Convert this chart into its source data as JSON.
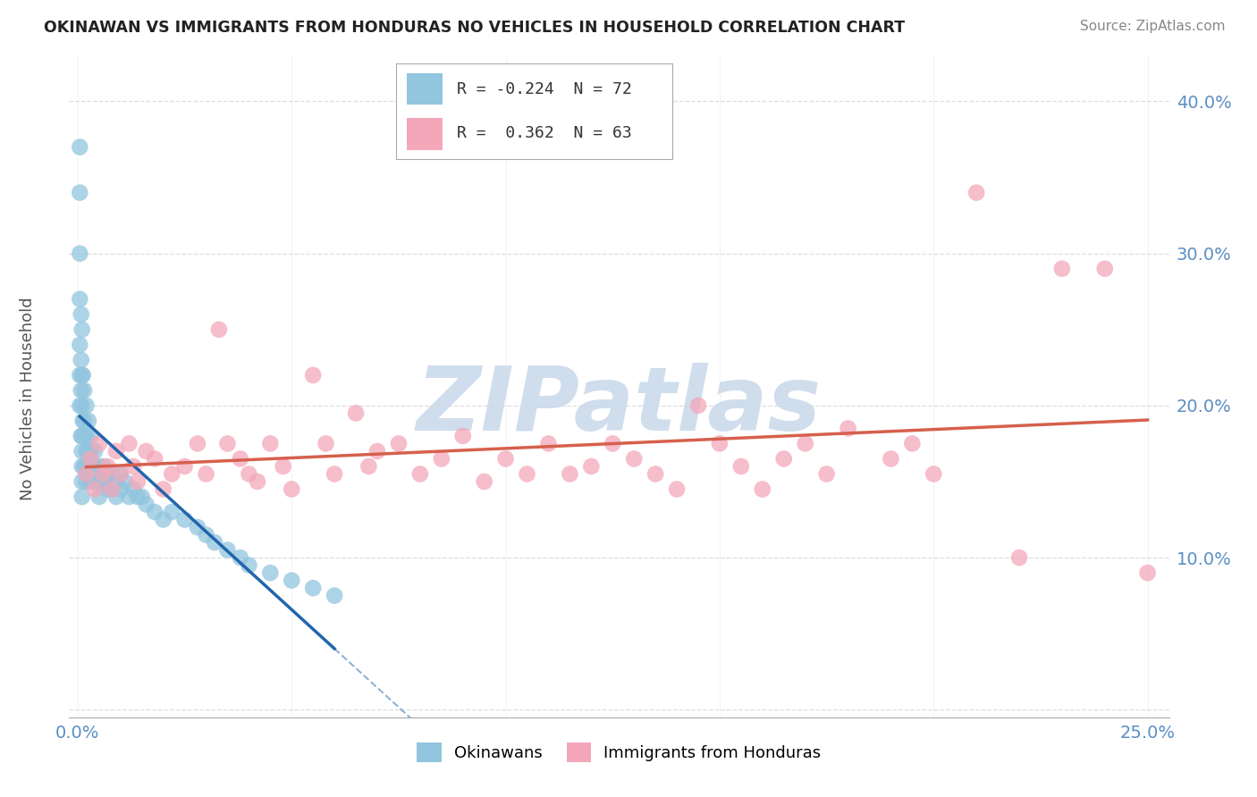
{
  "title": "OKINAWAN VS IMMIGRANTS FROM HONDURAS NO VEHICLES IN HOUSEHOLD CORRELATION CHART",
  "source": "Source: ZipAtlas.com",
  "ylabel": "No Vehicles in Household",
  "xlim": [
    -0.002,
    0.255
  ],
  "ylim": [
    -0.005,
    0.43
  ],
  "xticks": [
    0.0,
    0.05,
    0.1,
    0.15,
    0.2,
    0.25
  ],
  "yticks": [
    0.0,
    0.1,
    0.2,
    0.3,
    0.4
  ],
  "series1_name": "Okinawans",
  "series1_R": -0.224,
  "series1_N": 72,
  "series1_color": "#92c5de",
  "series1_trend_color": "#2166ac",
  "series2_name": "Immigrants from Honduras",
  "series2_R": 0.362,
  "series2_N": 63,
  "series2_color": "#f4a7b9",
  "series2_trend_color": "#d6604d",
  "watermark_text": "ZIPatlas",
  "watermark_color": "#c8d8ea",
  "background_color": "#ffffff",
  "grid_color": "#dddddd",
  "tick_color": "#5b8ec4",
  "okinawan_x": [
    0.0005,
    0.0005,
    0.0005,
    0.0005,
    0.0005,
    0.0005,
    0.0005,
    0.0008,
    0.0008,
    0.0008,
    0.0008,
    0.001,
    0.001,
    0.001,
    0.001,
    0.001,
    0.001,
    0.001,
    0.001,
    0.0012,
    0.0012,
    0.0015,
    0.0015,
    0.0015,
    0.0015,
    0.002,
    0.002,
    0.002,
    0.002,
    0.002,
    0.0025,
    0.0025,
    0.003,
    0.003,
    0.003,
    0.003,
    0.004,
    0.004,
    0.004,
    0.005,
    0.005,
    0.005,
    0.006,
    0.006,
    0.007,
    0.007,
    0.008,
    0.008,
    0.009,
    0.009,
    0.01,
    0.01,
    0.011,
    0.012,
    0.013,
    0.014,
    0.015,
    0.016,
    0.018,
    0.02,
    0.022,
    0.025,
    0.028,
    0.03,
    0.032,
    0.035,
    0.038,
    0.04,
    0.045,
    0.05,
    0.055,
    0.06
  ],
  "okinawan_y": [
    0.37,
    0.34,
    0.3,
    0.27,
    0.24,
    0.22,
    0.2,
    0.26,
    0.23,
    0.21,
    0.18,
    0.25,
    0.22,
    0.2,
    0.18,
    0.17,
    0.16,
    0.15,
    0.14,
    0.22,
    0.19,
    0.21,
    0.19,
    0.18,
    0.16,
    0.2,
    0.18,
    0.17,
    0.16,
    0.15,
    0.19,
    0.17,
    0.18,
    0.17,
    0.16,
    0.15,
    0.17,
    0.16,
    0.15,
    0.16,
    0.15,
    0.14,
    0.16,
    0.15,
    0.155,
    0.145,
    0.155,
    0.145,
    0.15,
    0.14,
    0.155,
    0.145,
    0.15,
    0.14,
    0.145,
    0.14,
    0.14,
    0.135,
    0.13,
    0.125,
    0.13,
    0.125,
    0.12,
    0.115,
    0.11,
    0.105,
    0.1,
    0.095,
    0.09,
    0.085,
    0.08,
    0.075
  ],
  "honduras_x": [
    0.002,
    0.003,
    0.004,
    0.005,
    0.006,
    0.007,
    0.008,
    0.009,
    0.01,
    0.012,
    0.013,
    0.014,
    0.016,
    0.018,
    0.02,
    0.022,
    0.025,
    0.028,
    0.03,
    0.033,
    0.035,
    0.038,
    0.04,
    0.042,
    0.045,
    0.048,
    0.05,
    0.055,
    0.058,
    0.06,
    0.065,
    0.068,
    0.07,
    0.075,
    0.08,
    0.085,
    0.09,
    0.095,
    0.1,
    0.105,
    0.11,
    0.115,
    0.12,
    0.125,
    0.13,
    0.135,
    0.14,
    0.145,
    0.15,
    0.155,
    0.16,
    0.165,
    0.17,
    0.175,
    0.18,
    0.19,
    0.195,
    0.2,
    0.21,
    0.22,
    0.23,
    0.24,
    0.25
  ],
  "honduras_y": [
    0.155,
    0.165,
    0.145,
    0.175,
    0.155,
    0.16,
    0.145,
    0.17,
    0.155,
    0.175,
    0.16,
    0.15,
    0.17,
    0.165,
    0.145,
    0.155,
    0.16,
    0.175,
    0.155,
    0.25,
    0.175,
    0.165,
    0.155,
    0.15,
    0.175,
    0.16,
    0.145,
    0.22,
    0.175,
    0.155,
    0.195,
    0.16,
    0.17,
    0.175,
    0.155,
    0.165,
    0.18,
    0.15,
    0.165,
    0.155,
    0.175,
    0.155,
    0.16,
    0.175,
    0.165,
    0.155,
    0.145,
    0.2,
    0.175,
    0.16,
    0.145,
    0.165,
    0.175,
    0.155,
    0.185,
    0.165,
    0.175,
    0.155,
    0.34,
    0.1,
    0.29,
    0.29,
    0.09
  ],
  "trend1_x_start": 0.0005,
  "trend1_x_end": 0.06,
  "trend1_dash_end": 0.13,
  "trend2_x_start": 0.002,
  "trend2_x_end": 0.25
}
